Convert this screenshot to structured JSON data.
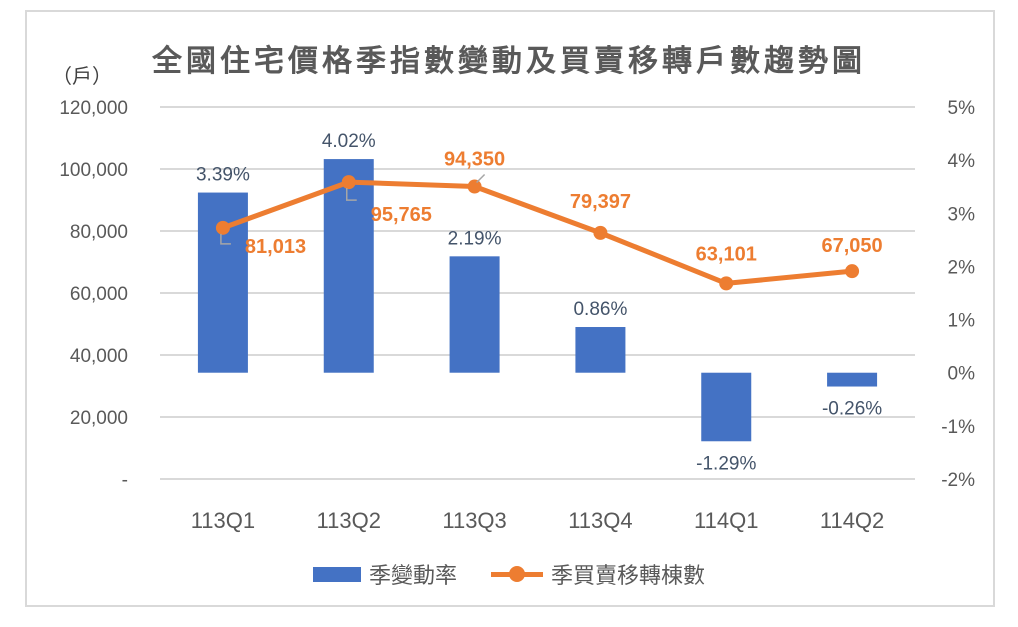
{
  "chart_data": {
    "type": "bar+line",
    "title": "全國住宅價格季指數變動及買賣移轉戶數趨勢圖",
    "left_axis_unit": "（戶）",
    "categories": [
      "113Q1",
      "113Q2",
      "113Q3",
      "113Q4",
      "114Q1",
      "114Q2"
    ],
    "series": [
      {
        "name": "季變動率",
        "type": "bar",
        "axis": "right",
        "color": "#4472c4",
        "values": [
          3.39,
          4.02,
          2.19,
          0.86,
          -1.29,
          -0.26
        ],
        "labels": [
          "3.39%",
          "4.02%",
          "2.19%",
          "0.86%",
          "-1.29%",
          "-0.26%"
        ]
      },
      {
        "name": "季買賣移轉棟數",
        "type": "line",
        "axis": "left",
        "color": "#ed7d31",
        "values": [
          81013,
          95765,
          94350,
          79397,
          63101,
          67050
        ],
        "labels": [
          "81,013",
          "95,765",
          "94,350",
          "79,397",
          "63,101",
          "67,050"
        ]
      }
    ],
    "left_axis": {
      "ylim": [
        0,
        120000
      ],
      "ticks": [
        "120,000",
        "100,000",
        "80,000",
        "60,000",
        "40,000",
        "20,000",
        "-"
      ]
    },
    "right_axis": {
      "ylim": [
        -2,
        5
      ],
      "ticks": [
        "5%",
        "4%",
        "3%",
        "2%",
        "1%",
        "0%",
        "-1%",
        "-2%"
      ]
    },
    "grid": true,
    "legend_position": "bottom"
  },
  "legend": {
    "bar_label": "季變動率",
    "line_label": "季買賣移轉棟數"
  }
}
